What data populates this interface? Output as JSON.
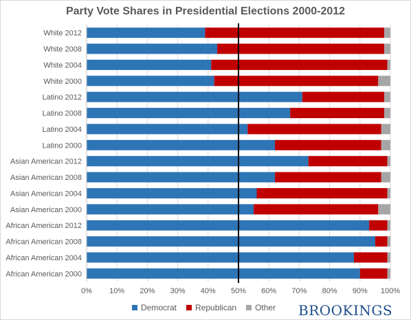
{
  "title": "Party Vote Shares in Presidential Elections 2000-2012",
  "brand": "BROOKINGS",
  "chart_data": {
    "type": "bar",
    "orientation": "horizontal",
    "stacked": true,
    "title": "Party Vote Shares in Presidential Elections 2000-2012",
    "categories": [
      "White 2012",
      "White 2008",
      "White 2004",
      "White 2000",
      "Latino 2012",
      "Latino 2008",
      "Latino 2004",
      "Latino 2000",
      "Asian American 2012",
      "Asian American 2008",
      "Asian American 2004",
      "Asian American 2000",
      "African American 2012",
      "African American 2008",
      "African American 2004",
      "African American 2000"
    ],
    "series": [
      {
        "name": "Democrat",
        "color": "#2e75b6",
        "values": [
          39,
          43,
          41,
          42,
          71,
          67,
          53,
          62,
          73,
          62,
          56,
          55,
          93,
          95,
          88,
          90
        ]
      },
      {
        "name": "Republican",
        "color": "#c00000",
        "values": [
          59,
          55,
          58,
          54,
          27,
          31,
          44,
          35,
          26,
          35,
          43,
          41,
          6,
          4,
          11,
          9
        ]
      },
      {
        "name": "Other",
        "color": "#a6a6a6",
        "values": [
          2,
          2,
          1,
          4,
          2,
          2,
          3,
          3,
          1,
          3,
          1,
          4,
          1,
          1,
          1,
          1
        ]
      }
    ],
    "x_ticks": [
      "0%",
      "10%",
      "20%",
      "30%",
      "40%",
      "50%",
      "60%",
      "70%",
      "80%",
      "90%",
      "100%"
    ],
    "xlim": [
      0,
      100
    ],
    "reference_line": 50,
    "legend_position": "bottom",
    "grid": true
  }
}
